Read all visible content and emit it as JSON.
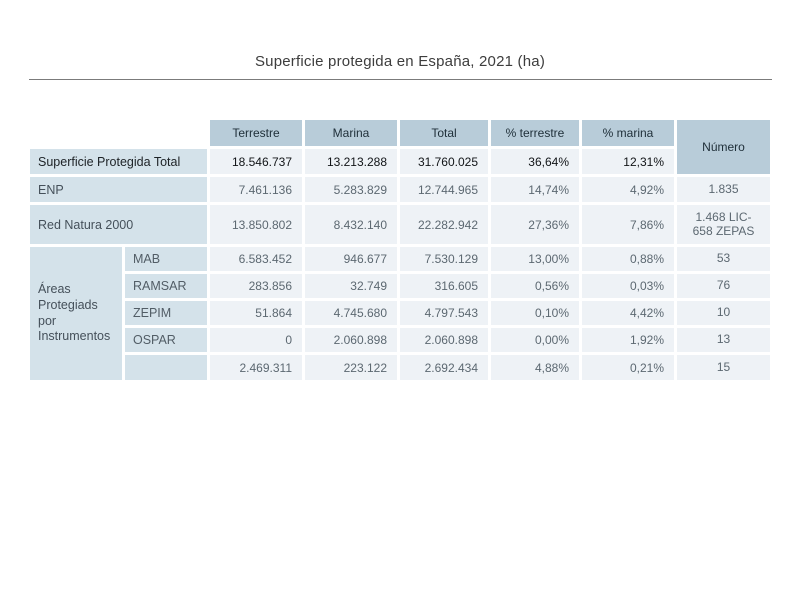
{
  "title": "Superficie protegida en España, 2021 (ha)",
  "colors": {
    "header_blue": "#b8ccd9",
    "label_blue": "#d4e2ea",
    "row_light": "#eef2f6",
    "rule_gray": "#7b7b7b",
    "text_dark": "#1d2226",
    "text_gray": "#5c6871"
  },
  "chart_data": {
    "type": "table",
    "title": "Superficie protegida en España, 2021 (ha)",
    "header": {
      "terrestre": "Terrestre",
      "marina": "Marina",
      "total": "Total",
      "pct_terrestre": "% terrestre",
      "pct_marina": "% marina",
      "numero": "Número"
    },
    "group_label": "Áreas Protegiads por Instrumentos",
    "rows": [
      {
        "label": "Superficie Protegida Total",
        "terrestre": "18.546.737",
        "marina": "13.213.288",
        "total": "31.760.025",
        "pct_terrestre": "36,64%",
        "pct_marina": "12,31%",
        "numero": ""
      },
      {
        "label": "ENP",
        "terrestre": "7.461.136",
        "marina": "5.283.829",
        "total": "12.744.965",
        "pct_terrestre": "14,74%",
        "pct_marina": "4,92%",
        "numero": "1.835"
      },
      {
        "label": "Red Natura 2000",
        "terrestre": "13.850.802",
        "marina": "8.432.140",
        "total": "22.282.942",
        "pct_terrestre": "27,36%",
        "pct_marina": "7,86%",
        "numero": "1.468 LIC-\n658 ZEPAS"
      },
      {
        "label": "MAB",
        "terrestre": "6.583.452",
        "marina": "946.677",
        "total": "7.530.129",
        "pct_terrestre": "13,00%",
        "pct_marina": "0,88%",
        "numero": "53"
      },
      {
        "label": "RAMSAR",
        "terrestre": "283.856",
        "marina": "32.749",
        "total": "316.605",
        "pct_terrestre": "0,56%",
        "pct_marina": "0,03%",
        "numero": "76"
      },
      {
        "label": "ZEPIM",
        "terrestre": "51.864",
        "marina": "4.745.680",
        "total": "4.797.543",
        "pct_terrestre": "0,10%",
        "pct_marina": "4,42%",
        "numero": "10"
      },
      {
        "label": "OSPAR",
        "terrestre": "0",
        "marina": "2.060.898",
        "total": "2.060.898",
        "pct_terrestre": "0,00%",
        "pct_marina": "1,92%",
        "numero": "13"
      },
      {
        "label": "",
        "terrestre": "2.469.311",
        "marina": "223.122",
        "total": "2.692.434",
        "pct_terrestre": "4,88%",
        "pct_marina": "0,21%",
        "numero": "15"
      }
    ]
  }
}
